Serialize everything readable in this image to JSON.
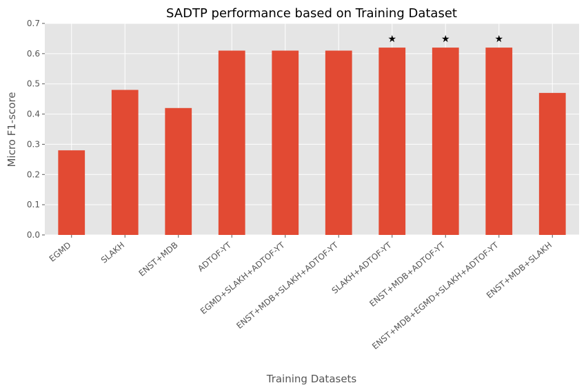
{
  "chart_data": {
    "type": "bar",
    "title": "SADTP performance based on Training Dataset",
    "xlabel": "Training Datasets",
    "ylabel": "Micro F1-score",
    "ylim": [
      0,
      0.7
    ],
    "yticks": [
      0.0,
      0.1,
      0.2,
      0.3,
      0.4,
      0.5,
      0.6,
      0.7
    ],
    "ytick_labels": [
      "0.0",
      "0.1",
      "0.2",
      "0.3",
      "0.4",
      "0.5",
      "0.6",
      "0.7"
    ],
    "categories": [
      "EGMD",
      "SLAKH",
      "ENST+MDB",
      "ADTOF-YT",
      "EGMD+SLAKH+ADTOF-YT",
      "ENST+MDB+SLAKH+ADTOF-YT",
      "SLAKH+ADTOF-YT",
      "ENST+MDB+ADTOF-YT",
      "ENST+MDB+EGMD+SLAKH+ADTOF-YT",
      "ENST+MDB+SLAKH"
    ],
    "values": [
      0.28,
      0.48,
      0.42,
      0.61,
      0.61,
      0.61,
      0.62,
      0.62,
      0.62,
      0.47
    ],
    "markers": [
      "",
      "",
      "",
      "",
      "",
      "",
      "★",
      "★",
      "★",
      ""
    ],
    "grid": true,
    "style": {
      "bar_color": "#E24A33",
      "background": "#E5E5E5",
      "grid_color": "#FFFFFF"
    }
  }
}
